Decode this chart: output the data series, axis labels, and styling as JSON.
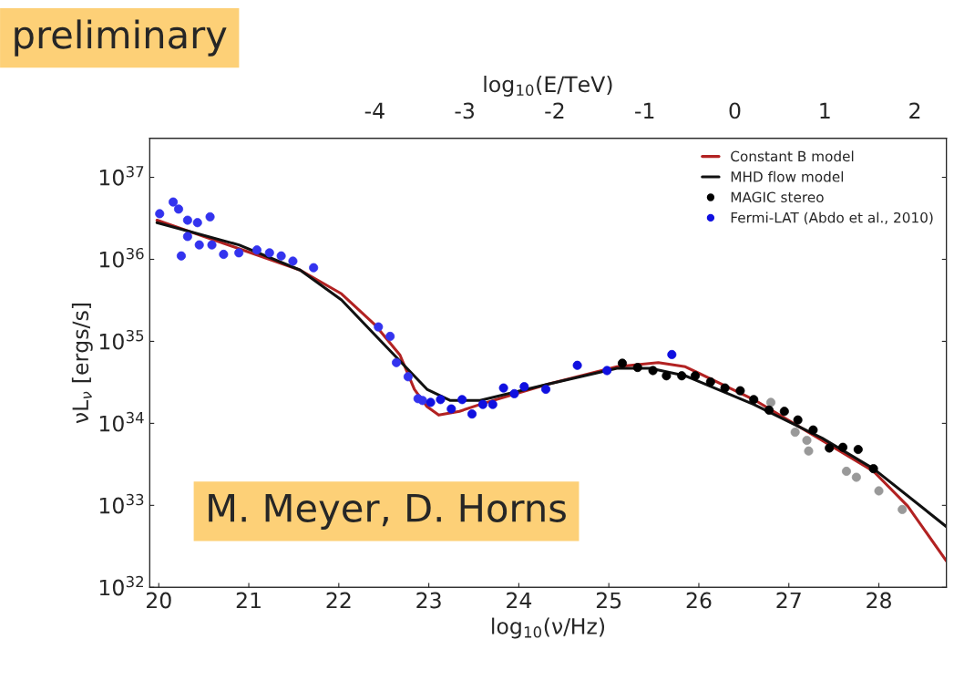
{
  "chart_data": {
    "type": "line",
    "xlabel": "log$_{10}$(ν/Hz)",
    "x2label": "log$_{10}$(E/TeV)",
    "ylabel": "νL$_{ν}$ [ergs/s]",
    "annotations": [
      "preliminary",
      "M. Meyer, D. Horns"
    ],
    "log": "y",
    "grid": false,
    "legend": "top right",
    "xlim": [
      19.9,
      28.75
    ],
    "xticks": [
      20,
      21,
      22,
      23,
      24,
      25,
      26,
      27,
      28
    ],
    "x2lim": [
      -6.5,
      2.35
    ],
    "x2ticks": [
      -4,
      -3,
      -2,
      -1,
      0,
      1,
      2
    ],
    "ylim": [
      1e+32,
      3e+37
    ],
    "yticks": [
      {
        "value": 1e+32,
        "label": "10$^{32}$"
      },
      {
        "value": 1e+33,
        "label": "10$^{33}$"
      },
      {
        "value": 1e+34,
        "label": "10$^{34}$"
      },
      {
        "value": 1e+35,
        "label": "10$^{35}$"
      },
      {
        "value": 1e+36,
        "label": "10$^{36}$"
      },
      {
        "value": 1e+37,
        "label": "10$^{37}$"
      }
    ],
    "series": [
      {
        "type": "scatter",
        "color": "#3333ee",
        "marker": "circle",
        "x": [
          20.01,
          20.16,
          20.22,
          20.32,
          20.43,
          20.57,
          20.32,
          20.25,
          20.45,
          20.59,
          20.72,
          20.89,
          21.09,
          21.23,
          21.36,
          21.49,
          21.72,
          22.44,
          22.57,
          22.64,
          22.77,
          22.88,
          22.93
        ],
        "values": [
          3.6e+36,
          5e+36,
          4.1e+36,
          3e+36,
          2.8e+36,
          3.3e+36,
          1.9e+36,
          1.1e+36,
          1.5e+36,
          1.5e+36,
          1.15e+36,
          1.2e+36,
          1.3e+36,
          1.2e+36,
          1.1e+36,
          9.5e+35,
          7.9e+35,
          1.5e+35,
          1.15e+35,
          5.5e+34,
          3.7e+34,
          2e+34,
          1.9e+34
        ]
      },
      {
        "type": "scatter",
        "color": "#999999",
        "marker": "circle",
        "x": [
          26.8,
          27.07,
          27.2,
          27.22,
          27.64,
          27.75,
          28.0,
          28.26
        ],
        "values": [
          1.8e+34,
          7.8e+33,
          6.2e+33,
          4.6e+33,
          2.6e+33,
          2.2e+33,
          1.5e+33,
          8.9e+32
        ]
      },
      {
        "name": "Constant B model",
        "color": "#b22222",
        "x": [
          19.98,
          20.89,
          21.57,
          22.03,
          22.4,
          22.68,
          22.84,
          22.98,
          23.11,
          23.34,
          23.57,
          24.32,
          25.09,
          25.55,
          25.85,
          26.61,
          27.37,
          27.94,
          28.32,
          28.75
        ],
        "values": [
          3e+36,
          1.35e+36,
          7.4e+35,
          3.8e+35,
          1.6e+35,
          6.8e+34,
          2.6e+34,
          1.6e+34,
          1.26e+34,
          1.4e+34,
          1.7e+34,
          3e+34,
          4.9e+34,
          5.5e+34,
          4.9e+34,
          1.95e+34,
          6.2e+33,
          2.6e+33,
          9.8e+32,
          2.1e+32
        ]
      },
      {
        "name": "MHD flow model",
        "color": "#111111",
        "x": [
          19.98,
          20.89,
          21.57,
          22.03,
          22.4,
          22.74,
          22.98,
          23.24,
          23.57,
          24.32,
          25.09,
          25.46,
          25.85,
          26.61,
          27.37,
          27.94,
          28.75
        ],
        "values": [
          2.8e+36,
          1.5e+36,
          7.4e+35,
          3.2e+35,
          1.2e+35,
          4.9e+34,
          2.6e+34,
          1.9e+34,
          1.9e+34,
          3e+34,
          4.7e+34,
          4.7e+34,
          3.8e+34,
          1.7e+34,
          6.6e+33,
          2.8e+33,
          5.5e+32
        ]
      },
      {
        "name": "MAGIC stereo",
        "type": "scatter",
        "color": "#000000",
        "marker": "circle",
        "x": [
          25.15,
          25.32,
          25.49,
          25.64,
          25.81,
          25.96,
          26.13,
          26.29,
          26.46,
          26.61,
          26.78,
          26.95,
          27.1,
          27.27,
          27.45,
          27.6,
          27.77,
          27.94
        ],
        "values": [
          5.4e+34,
          4.8e+34,
          4.4e+34,
          3.8e+34,
          3.8e+34,
          3.8e+34,
          3.2e+34,
          2.7e+34,
          2.5e+34,
          1.95e+34,
          1.45e+34,
          1.4e+34,
          1.1e+34,
          8.3e+33,
          5e+33,
          5.1e+33,
          4.8e+33,
          2.8e+33
        ]
      },
      {
        "name": "Fermi-LAT (Abdo et al., 2010)",
        "type": "scatter",
        "color": "#1010e0",
        "marker": "circle",
        "x": [
          23.02,
          23.13,
          23.25,
          23.37,
          23.48,
          23.6,
          23.71,
          23.83,
          23.95,
          24.06,
          24.3,
          24.65,
          24.98,
          25.7
        ],
        "values": [
          1.8e+34,
          1.95e+34,
          1.5e+34,
          1.95e+34,
          1.3e+34,
          1.7e+34,
          1.7e+34,
          2.7e+34,
          2.3e+34,
          2.8e+34,
          2.6e+34,
          5.1e+34,
          4.4e+34,
          6.9e+34
        ]
      }
    ]
  }
}
